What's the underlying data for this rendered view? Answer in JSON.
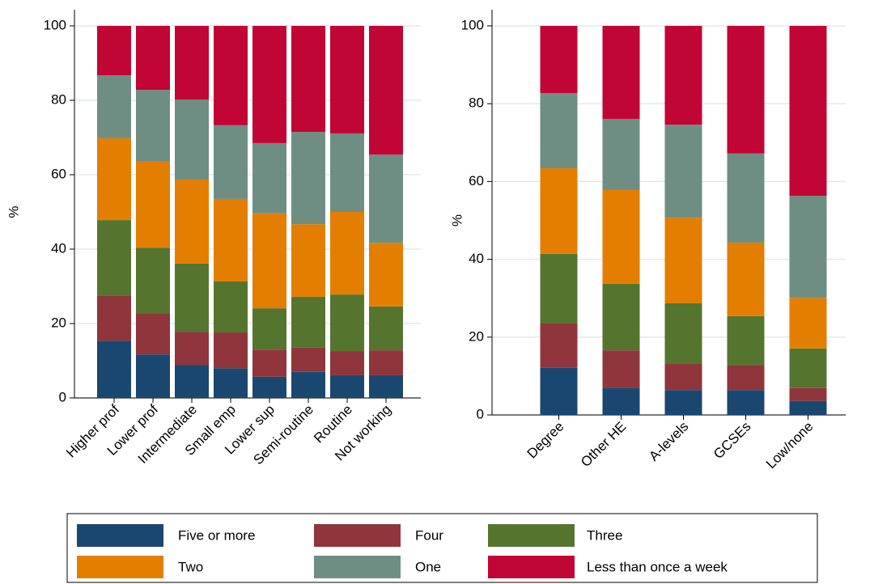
{
  "chart_data": [
    {
      "type": "stacked-bar",
      "y_label": "%",
      "categories": [
        "Higher prof",
        "Lower prof",
        "Intermediate",
        "Small emp",
        "Lower sup",
        "Semi-routine",
        "Routine",
        "Not working"
      ],
      "ylim": [
        0,
        100
      ],
      "yticks": [
        0,
        20,
        40,
        60,
        80,
        100
      ],
      "grid": true,
      "series": [
        {
          "name": "Five or more",
          "color": "#1a476f",
          "values": [
            15.4,
            11.7,
            8.9,
            8.0,
            5.7,
            7.0,
            6.1,
            6.1
          ]
        },
        {
          "name": "Four",
          "color": "#90353b",
          "values": [
            12.0,
            11.1,
            8.9,
            9.6,
            7.3,
            6.5,
            6.5,
            6.7
          ]
        },
        {
          "name": "Three",
          "color": "#55752f",
          "values": [
            20.4,
            17.6,
            18.3,
            13.7,
            11.1,
            13.7,
            15.2,
            11.8
          ]
        },
        {
          "name": "Two",
          "color": "#e37e00",
          "values": [
            22.0,
            23.1,
            22.6,
            22.2,
            25.5,
            19.5,
            22.2,
            17.1
          ]
        },
        {
          "name": "One",
          "color": "#6e8e84",
          "values": [
            16.9,
            19.3,
            21.5,
            19.8,
            18.9,
            24.8,
            21.1,
            23.7
          ]
        },
        {
          "name": "Less than once a week",
          "color": "#c10534",
          "values": [
            13.3,
            17.2,
            19.8,
            26.7,
            31.5,
            28.5,
            28.9,
            34.6
          ]
        }
      ]
    },
    {
      "type": "stacked-bar",
      "y_label": "%",
      "categories": [
        "Degree",
        "Other HE",
        "A-levels",
        "GCSEs",
        "Low/none"
      ],
      "ylim": [
        0,
        100
      ],
      "yticks": [
        0,
        20,
        40,
        60,
        80,
        100
      ],
      "grid": true,
      "series": [
        {
          "name": "Five or more",
          "color": "#1a476f",
          "values": [
            12.1,
            7.0,
            6.4,
            6.4,
            3.6
          ]
        },
        {
          "name": "Four",
          "color": "#90353b",
          "values": [
            11.4,
            9.6,
            6.7,
            6.4,
            3.3
          ]
        },
        {
          "name": "Three",
          "color": "#55752f",
          "values": [
            17.9,
            17.1,
            15.6,
            12.6,
            10.2
          ]
        },
        {
          "name": "Two",
          "color": "#e37e00",
          "values": [
            22.0,
            24.1,
            22.0,
            18.9,
            13.0
          ]
        },
        {
          "name": "One",
          "color": "#6e8e84",
          "values": [
            19.3,
            18.3,
            23.9,
            22.9,
            26.2
          ]
        },
        {
          "name": "Less than once a week",
          "color": "#c10534",
          "values": [
            17.3,
            23.9,
            25.4,
            32.8,
            43.7
          ]
        }
      ]
    }
  ]
}
